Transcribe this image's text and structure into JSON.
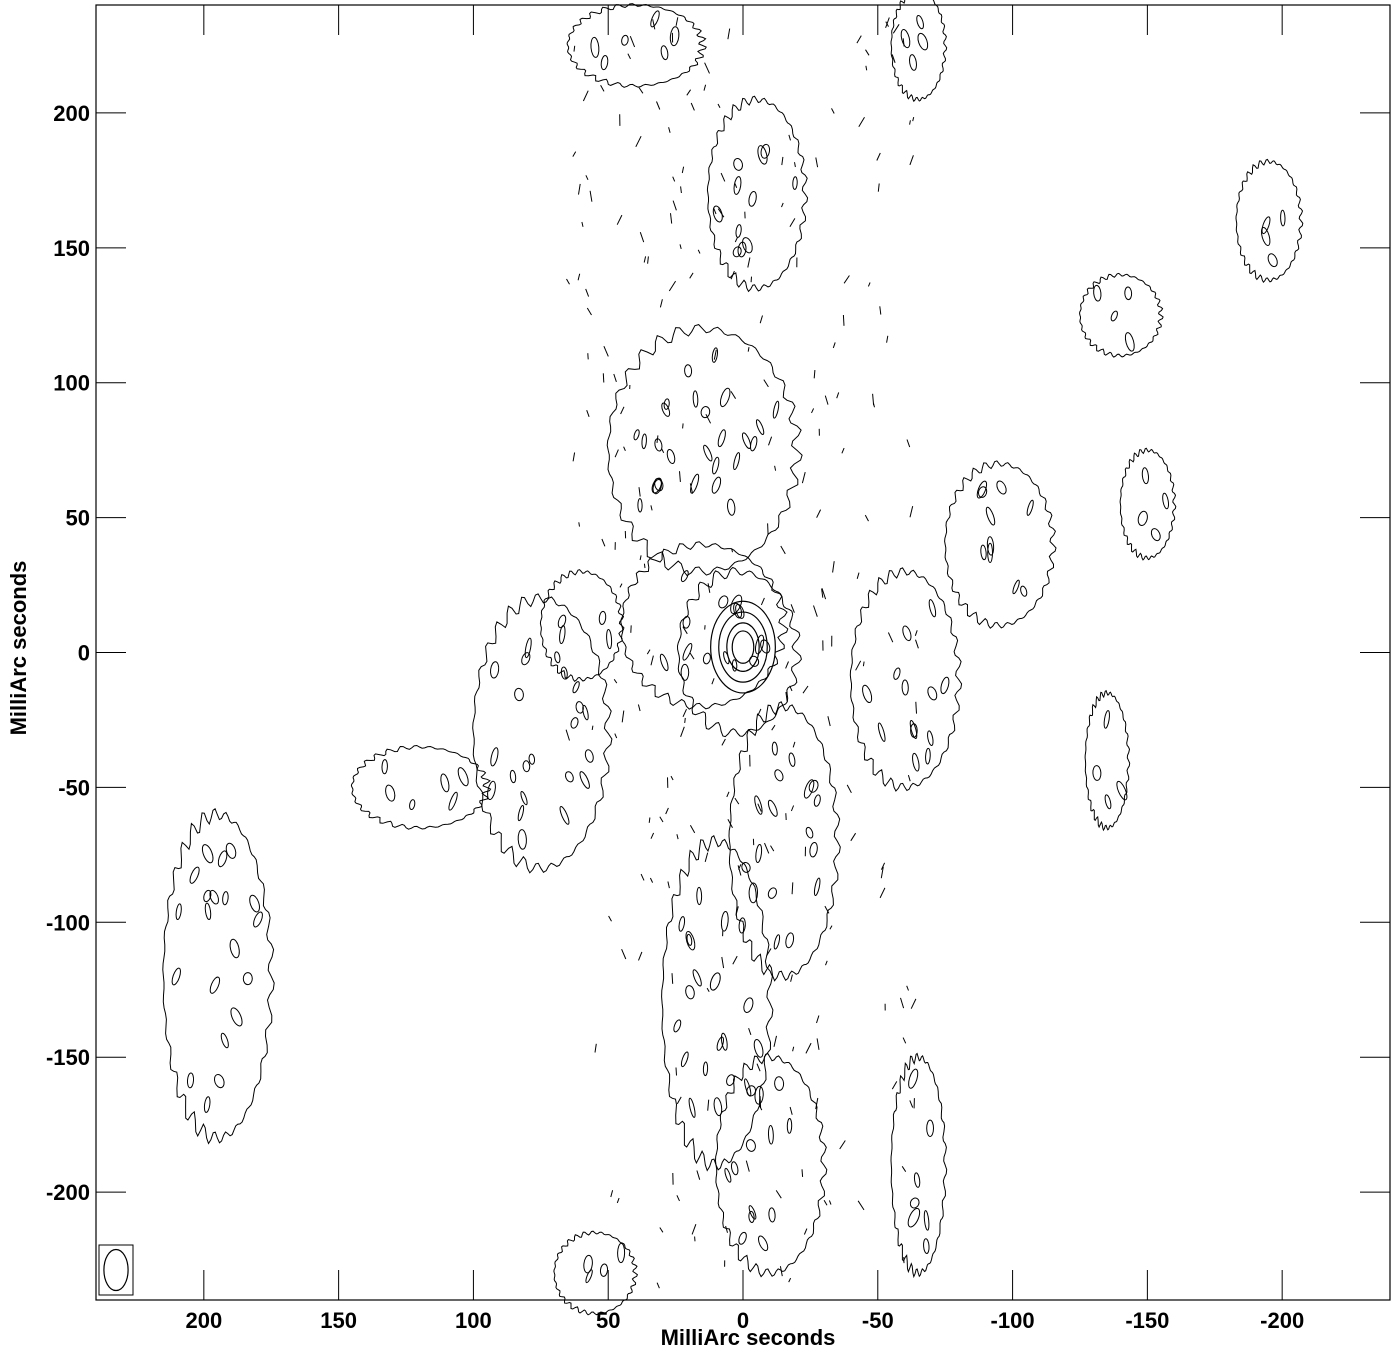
{
  "chart_data": {
    "type": "contour",
    "title": "",
    "xlabel": "MilliArc seconds",
    "ylabel": "MilliArc seconds",
    "xlim": [
      240,
      -240
    ],
    "ylim": [
      -240,
      240
    ],
    "x_ticks": [
      200,
      150,
      100,
      50,
      0,
      -50,
      -100,
      -150,
      -200
    ],
    "y_ticks": [
      200,
      150,
      100,
      50,
      0,
      -50,
      -100,
      -150,
      -200
    ],
    "x_tick_labels": [
      "200",
      "150",
      "100",
      "50",
      "0",
      "-50",
      "-100",
      "-150",
      "-200"
    ],
    "y_tick_labels": [
      "200",
      "150",
      "100",
      "50",
      "0",
      "-50",
      "-100",
      "-150",
      "-200"
    ],
    "grid": false,
    "peak": {
      "x": 0,
      "y": 2
    },
    "core_contours": [
      {
        "rx": 4,
        "ry": 6
      },
      {
        "rx": 6,
        "ry": 9
      },
      {
        "rx": 9,
        "ry": 13
      },
      {
        "rx": 12,
        "ry": 17
      }
    ],
    "extended_regions": [
      {
        "x": 15,
        "y": 10,
        "rx": 30,
        "ry": 30
      },
      {
        "x": -15,
        "y": -70,
        "rx": 20,
        "ry": 50
      },
      {
        "x": 10,
        "y": -130,
        "rx": 20,
        "ry": 60
      },
      {
        "x": 15,
        "y": 75,
        "rx": 35,
        "ry": 45
      },
      {
        "x": 75,
        "y": -30,
        "rx": 25,
        "ry": 50
      },
      {
        "x": 60,
        "y": 10,
        "rx": 15,
        "ry": 20
      },
      {
        "x": 120,
        "y": -50,
        "rx": 25,
        "ry": 15
      },
      {
        "x": 195,
        "y": -120,
        "rx": 20,
        "ry": 60
      },
      {
        "x": -60,
        "y": -10,
        "rx": 20,
        "ry": 40
      },
      {
        "x": -95,
        "y": 40,
        "rx": 20,
        "ry": 30
      },
      {
        "x": -5,
        "y": 170,
        "rx": 18,
        "ry": 35
      },
      {
        "x": -10,
        "y": -190,
        "rx": 20,
        "ry": 40
      },
      {
        "x": -195,
        "y": 160,
        "rx": 12,
        "ry": 22
      },
      {
        "x": -150,
        "y": 55,
        "rx": 10,
        "ry": 20
      },
      {
        "x": -135,
        "y": -40,
        "rx": 8,
        "ry": 25
      },
      {
        "x": -140,
        "y": 125,
        "rx": 15,
        "ry": 15
      },
      {
        "x": -65,
        "y": 225,
        "rx": 10,
        "ry": 20
      },
      {
        "x": 40,
        "y": 225,
        "rx": 25,
        "ry": 15
      },
      {
        "x": -65,
        "y": -190,
        "rx": 10,
        "ry": 40
      },
      {
        "x": 55,
        "y": -230,
        "rx": 15,
        "ry": 15
      }
    ],
    "beam": {
      "bmaj": 13,
      "bmin": 6,
      "pa": 0
    }
  }
}
